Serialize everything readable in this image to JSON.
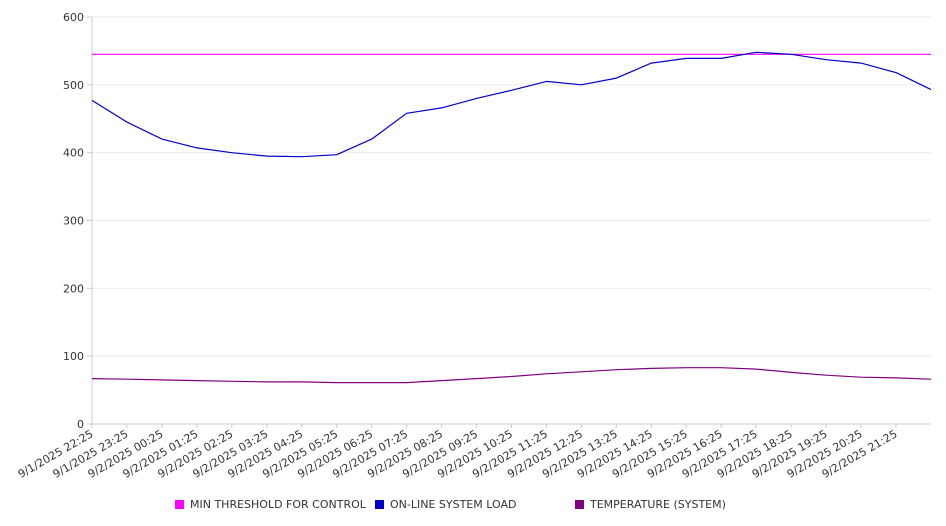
{
  "chart_data": {
    "type": "line",
    "title": "",
    "xlabel": "",
    "ylabel": "",
    "ylim": [
      0,
      600
    ],
    "y_ticks": [
      0,
      100,
      200,
      300,
      400,
      500,
      600
    ],
    "x_tick_labels": [
      "9/1/2025 22:25",
      "9/1/2025 23:25",
      "9/2/2025 00:25",
      "9/2/2025 01:25",
      "9/2/2025 02:25",
      "9/2/2025 03:25",
      "9/2/2025 04:25",
      "9/2/2025 05:25",
      "9/2/2025 06:25",
      "9/2/2025 07:25",
      "9/2/2025 08:25",
      "9/2/2025 09:25",
      "9/2/2025 10:25",
      "9/2/2025 11:25",
      "9/2/2025 12:25",
      "9/2/2025 13:25",
      "9/2/2025 14:25",
      "9/2/2025 15:25",
      "9/2/2025 16:25",
      "9/2/2025 17:25",
      "9/2/2025 18:25",
      "9/2/2025 19:25",
      "9/2/2025 20:25",
      "9/2/2025 21:25"
    ],
    "grid": true,
    "legend_position": "bottom",
    "series": [
      {
        "name": "MIN THRESHOLD FOR CONTROL",
        "color": "#ff00ff",
        "values": [
          545,
          545,
          545,
          545,
          545,
          545,
          545,
          545,
          545,
          545,
          545,
          545,
          545,
          545,
          545,
          545,
          545,
          545,
          545,
          545,
          545,
          545,
          545,
          545,
          545
        ]
      },
      {
        "name": "ON-LINE SYSTEM LOAD",
        "color": "#0000cc",
        "values": [
          477,
          445,
          420,
          407,
          400,
          395,
          394,
          397,
          420,
          458,
          466,
          480,
          492,
          505,
          500,
          510,
          532,
          539,
          539,
          548,
          545,
          537,
          532,
          518,
          493
        ]
      },
      {
        "name": "TEMPERATURE (SYSTEM)",
        "color": "#800080",
        "values": [
          67,
          66,
          65,
          64,
          63,
          62,
          62,
          61,
          61,
          61,
          64,
          67,
          70,
          74,
          77,
          80,
          82,
          83,
          83,
          81,
          76,
          72,
          69,
          68,
          66
        ]
      }
    ]
  }
}
